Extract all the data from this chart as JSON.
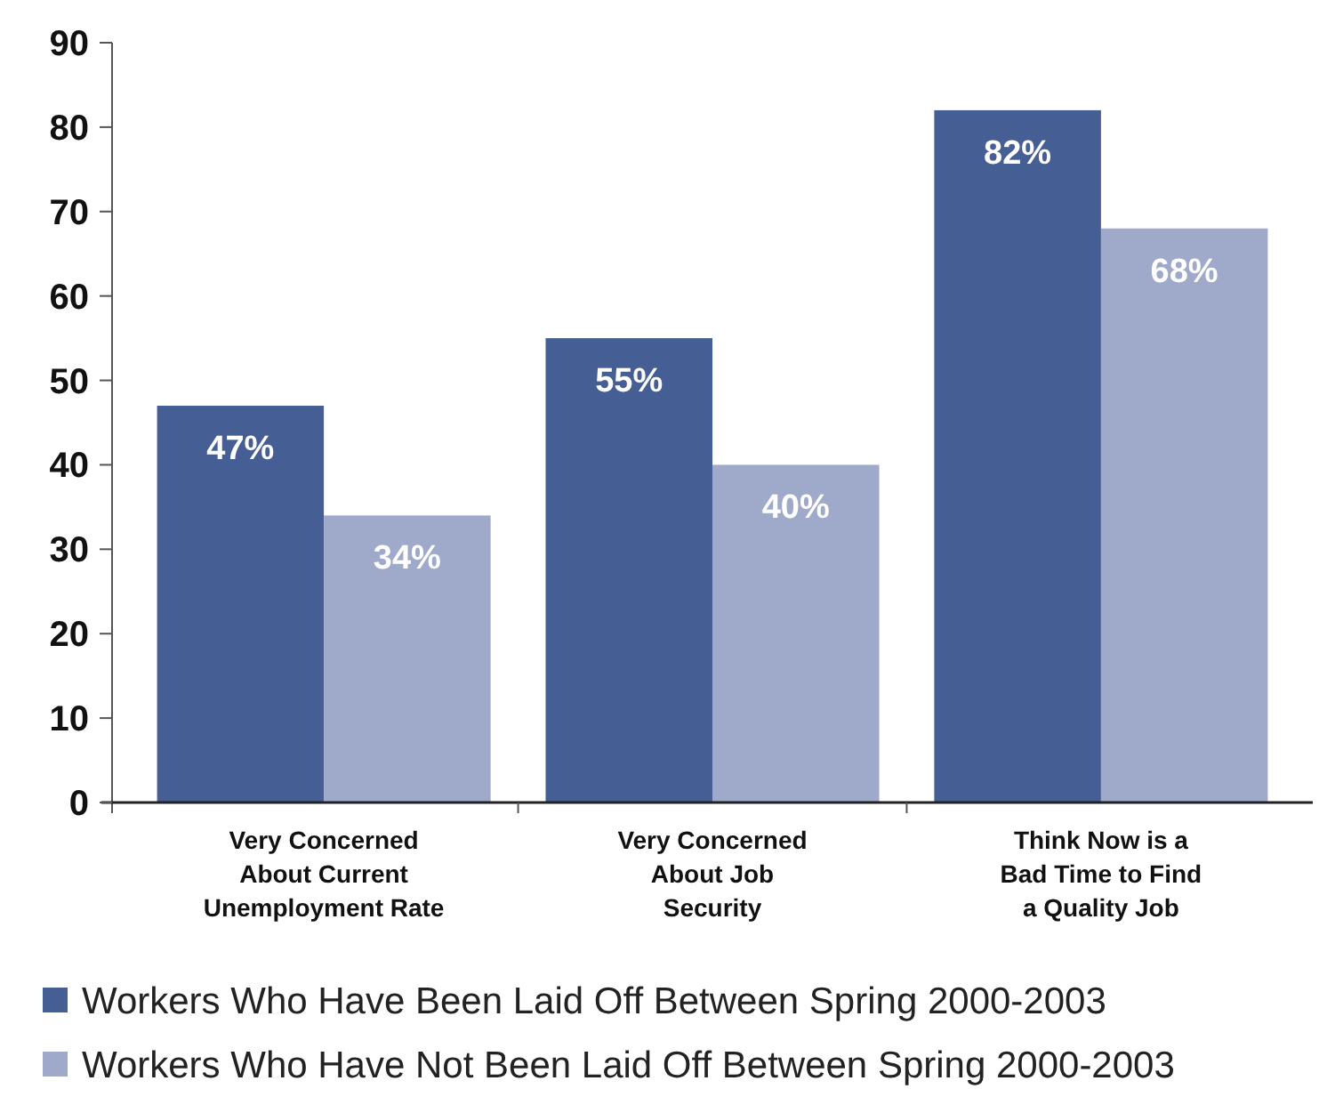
{
  "chart_data": {
    "type": "bar",
    "categories": [
      "Very Concerned About Current Unemployment Rate",
      "Very Concerned About Job Security",
      "Think Now is a Bad Time to Find a Quality Job"
    ],
    "series": [
      {
        "name": "Workers Who Have Been Laid Off Between Spring 2000-2003",
        "color": "#455e94",
        "values": [
          47,
          55,
          82
        ],
        "value_labels": [
          "47%",
          "55%",
          "82%"
        ]
      },
      {
        "name": "Workers Who Have Not Been Laid Off Between Spring 2000-2003",
        "color": "#9fa9ca",
        "values": [
          34,
          40,
          68
        ],
        "value_labels": [
          "34%",
          "40%",
          "68%"
        ]
      }
    ],
    "ylim": [
      0,
      90
    ],
    "yticks": [
      0,
      10,
      20,
      30,
      40,
      50,
      60,
      70,
      80,
      90
    ],
    "grid": false,
    "legend": "bottom"
  }
}
